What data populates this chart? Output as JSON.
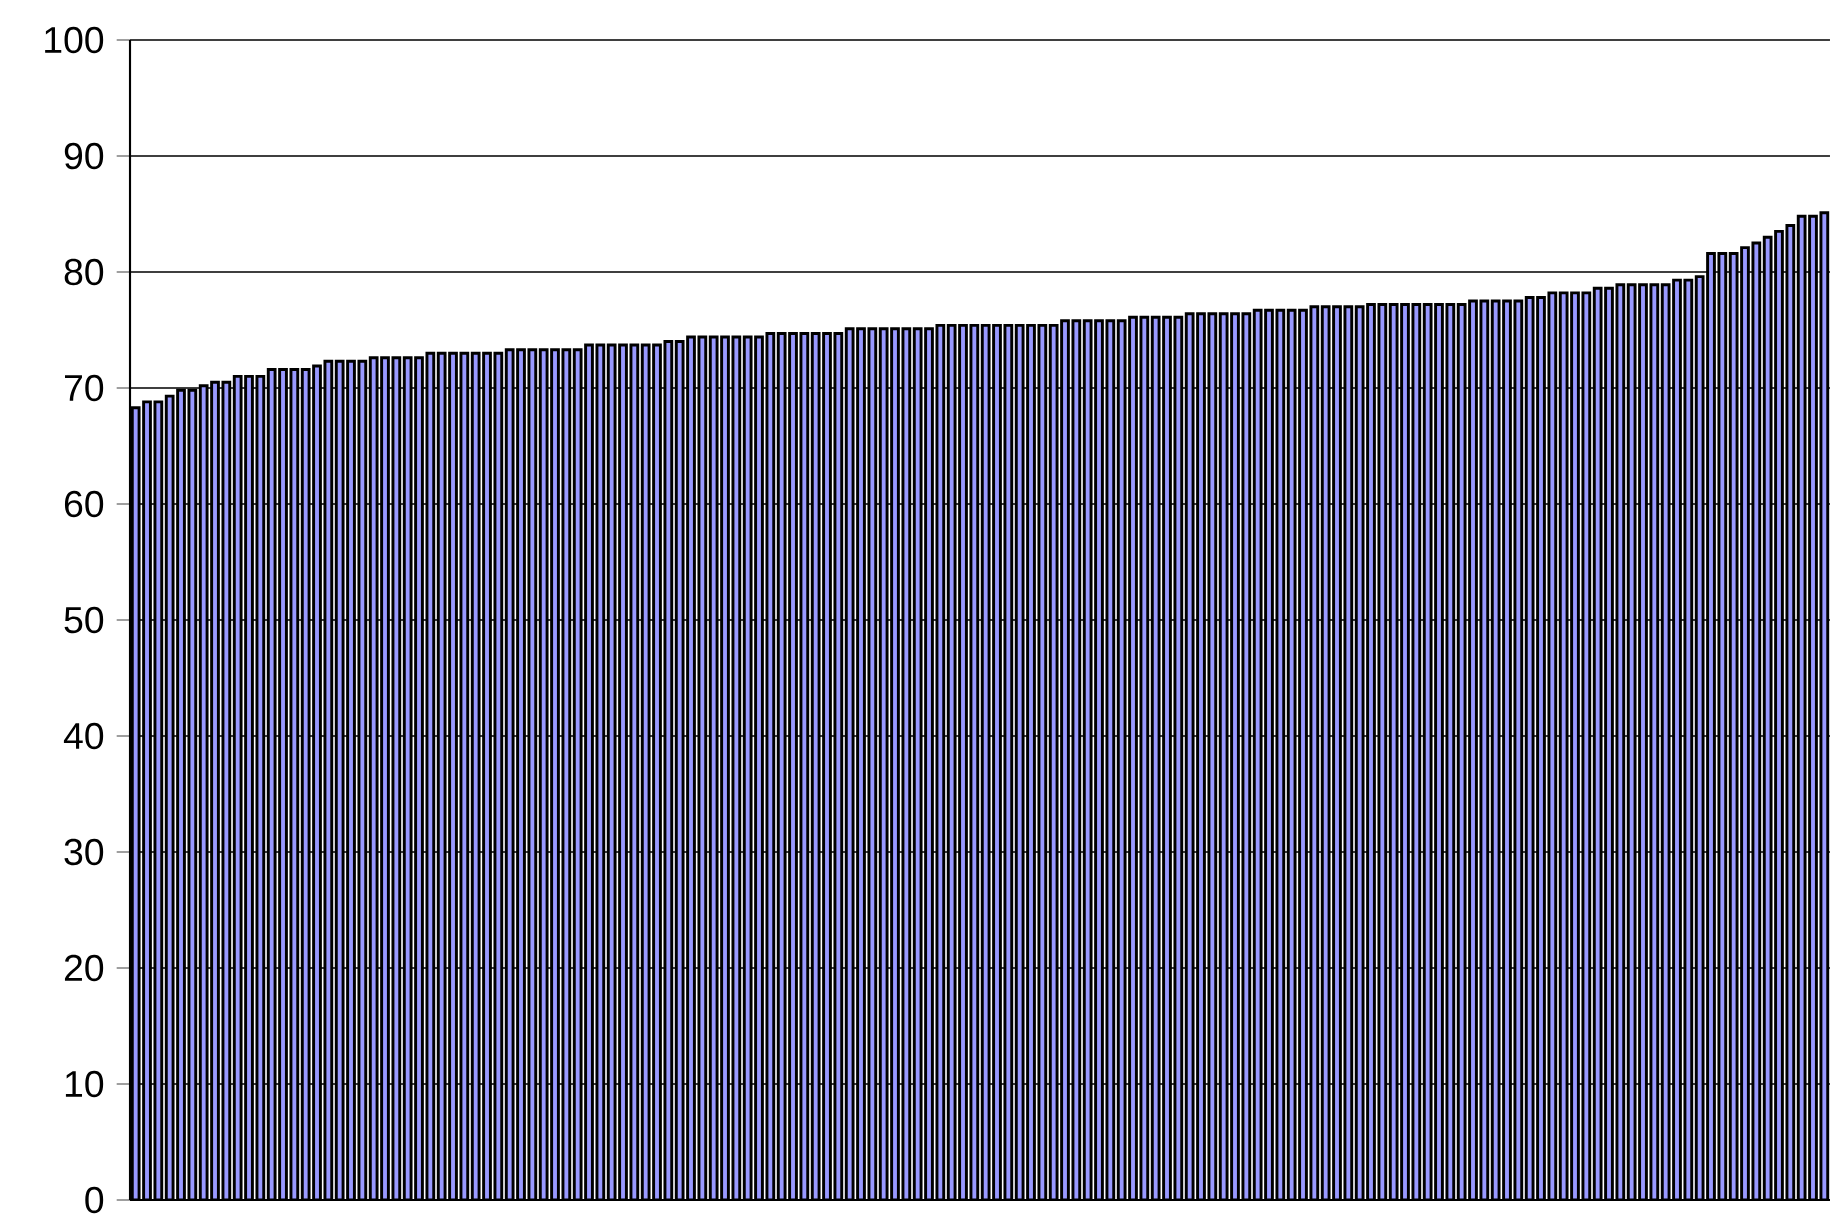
{
  "chart_data": {
    "type": "bar",
    "categories": [
      null,
      null,
      null,
      null,
      null,
      null,
      null,
      null,
      null,
      null,
      null,
      null,
      null,
      null,
      null,
      null,
      null,
      null,
      null,
      null,
      null,
      null,
      null,
      null,
      null,
      null,
      null,
      null,
      null,
      null,
      null,
      null,
      null,
      null,
      null,
      null,
      null,
      null,
      null,
      null,
      null,
      null,
      null,
      null,
      null,
      null,
      null,
      null,
      null,
      null,
      null,
      null,
      null,
      null,
      null,
      null,
      null,
      null,
      null,
      null,
      null,
      null,
      null,
      null,
      null,
      null,
      null,
      null,
      null,
      null,
      null,
      null,
      null,
      null,
      null,
      null,
      null,
      null,
      null,
      null,
      null,
      null,
      null,
      null,
      null,
      null,
      null,
      null,
      null,
      null,
      null,
      null,
      null,
      null,
      null,
      null,
      null,
      null,
      null,
      null,
      null,
      null,
      null,
      null,
      null,
      null,
      null,
      null,
      null,
      null,
      null,
      null,
      null,
      null,
      null,
      null,
      null,
      null,
      null,
      null,
      null,
      null,
      null,
      null,
      null,
      null,
      null,
      null,
      null,
      null,
      null,
      null,
      null,
      null,
      null,
      null,
      null,
      null,
      null,
      null,
      null,
      null,
      null,
      null,
      null,
      null,
      null,
      null,
      null,
      null
    ],
    "values": [
      68.3,
      68.8,
      68.8,
      69.3,
      69.8,
      69.8,
      70.2,
      70.5,
      70.5,
      71.0,
      71.0,
      71.0,
      71.6,
      71.6,
      71.6,
      71.6,
      71.9,
      72.3,
      72.3,
      72.3,
      72.3,
      72.6,
      72.6,
      72.6,
      72.6,
      72.6,
      73.0,
      73.0,
      73.0,
      73.0,
      73.0,
      73.0,
      73.0,
      73.3,
      73.3,
      73.3,
      73.3,
      73.3,
      73.3,
      73.3,
      73.7,
      73.7,
      73.7,
      73.7,
      73.7,
      73.7,
      73.7,
      74.0,
      74.0,
      74.4,
      74.4,
      74.4,
      74.4,
      74.4,
      74.4,
      74.4,
      74.7,
      74.7,
      74.7,
      74.7,
      74.7,
      74.7,
      74.7,
      75.1,
      75.1,
      75.1,
      75.1,
      75.1,
      75.1,
      75.1,
      75.1,
      75.4,
      75.4,
      75.4,
      75.4,
      75.4,
      75.4,
      75.4,
      75.4,
      75.4,
      75.4,
      75.4,
      75.8,
      75.8,
      75.8,
      75.8,
      75.8,
      75.8,
      76.1,
      76.1,
      76.1,
      76.1,
      76.1,
      76.4,
      76.4,
      76.4,
      76.4,
      76.4,
      76.4,
      76.7,
      76.7,
      76.7,
      76.7,
      76.7,
      77.0,
      77.0,
      77.0,
      77.0,
      77.0,
      77.2,
      77.2,
      77.2,
      77.2,
      77.2,
      77.2,
      77.2,
      77.2,
      77.2,
      77.5,
      77.5,
      77.5,
      77.5,
      77.5,
      77.8,
      77.8,
      78.2,
      78.2,
      78.2,
      78.2,
      78.6,
      78.6,
      78.9,
      78.9,
      78.9,
      78.9,
      78.9,
      79.3,
      79.3,
      79.6,
      81.6,
      81.6,
      81.6,
      82.1,
      82.5,
      83.0,
      83.5,
      84.0,
      84.8,
      84.8,
      85.1
    ],
    "color": "#9999ff",
    "ylim": [
      0,
      100
    ],
    "yticks": [
      0,
      10,
      20,
      30,
      40,
      50,
      60,
      70,
      80,
      90,
      100
    ],
    "grid": "y",
    "tick_labels": "y"
  }
}
